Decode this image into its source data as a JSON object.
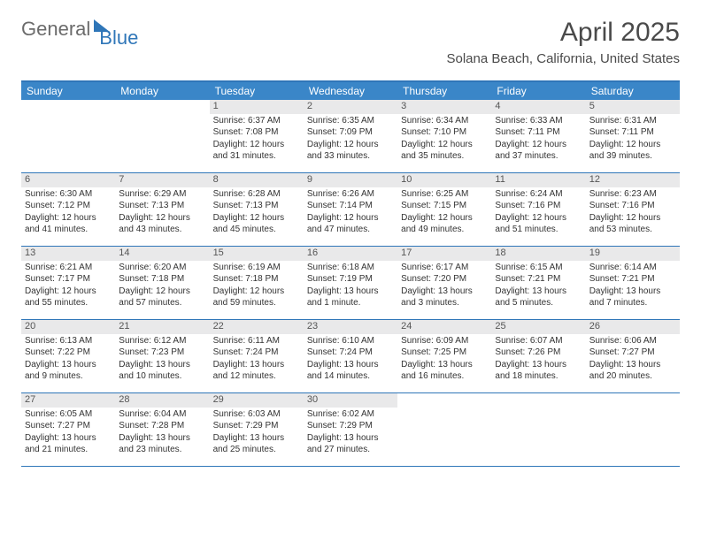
{
  "logo": {
    "word1": "General",
    "word2": "Blue"
  },
  "title": "April 2025",
  "location": "Solana Beach, California, United States",
  "colors": {
    "header_bg": "#3a86c8",
    "border": "#2f76b8",
    "daybar_bg": "#e9e9ea",
    "logo_gray": "#6b6b6b",
    "logo_blue": "#2f76b8",
    "text": "#333333"
  },
  "day_labels": [
    "Sunday",
    "Monday",
    "Tuesday",
    "Wednesday",
    "Thursday",
    "Friday",
    "Saturday"
  ],
  "weeks": [
    [
      {
        "empty": true
      },
      {
        "empty": true
      },
      {
        "n": "1",
        "sunrise": "Sunrise: 6:37 AM",
        "sunset": "Sunset: 7:08 PM",
        "day1": "Daylight: 12 hours",
        "day2": "and 31 minutes."
      },
      {
        "n": "2",
        "sunrise": "Sunrise: 6:35 AM",
        "sunset": "Sunset: 7:09 PM",
        "day1": "Daylight: 12 hours",
        "day2": "and 33 minutes."
      },
      {
        "n": "3",
        "sunrise": "Sunrise: 6:34 AM",
        "sunset": "Sunset: 7:10 PM",
        "day1": "Daylight: 12 hours",
        "day2": "and 35 minutes."
      },
      {
        "n": "4",
        "sunrise": "Sunrise: 6:33 AM",
        "sunset": "Sunset: 7:11 PM",
        "day1": "Daylight: 12 hours",
        "day2": "and 37 minutes."
      },
      {
        "n": "5",
        "sunrise": "Sunrise: 6:31 AM",
        "sunset": "Sunset: 7:11 PM",
        "day1": "Daylight: 12 hours",
        "day2": "and 39 minutes."
      }
    ],
    [
      {
        "n": "6",
        "sunrise": "Sunrise: 6:30 AM",
        "sunset": "Sunset: 7:12 PM",
        "day1": "Daylight: 12 hours",
        "day2": "and 41 minutes."
      },
      {
        "n": "7",
        "sunrise": "Sunrise: 6:29 AM",
        "sunset": "Sunset: 7:13 PM",
        "day1": "Daylight: 12 hours",
        "day2": "and 43 minutes."
      },
      {
        "n": "8",
        "sunrise": "Sunrise: 6:28 AM",
        "sunset": "Sunset: 7:13 PM",
        "day1": "Daylight: 12 hours",
        "day2": "and 45 minutes."
      },
      {
        "n": "9",
        "sunrise": "Sunrise: 6:26 AM",
        "sunset": "Sunset: 7:14 PM",
        "day1": "Daylight: 12 hours",
        "day2": "and 47 minutes."
      },
      {
        "n": "10",
        "sunrise": "Sunrise: 6:25 AM",
        "sunset": "Sunset: 7:15 PM",
        "day1": "Daylight: 12 hours",
        "day2": "and 49 minutes."
      },
      {
        "n": "11",
        "sunrise": "Sunrise: 6:24 AM",
        "sunset": "Sunset: 7:16 PM",
        "day1": "Daylight: 12 hours",
        "day2": "and 51 minutes."
      },
      {
        "n": "12",
        "sunrise": "Sunrise: 6:23 AM",
        "sunset": "Sunset: 7:16 PM",
        "day1": "Daylight: 12 hours",
        "day2": "and 53 minutes."
      }
    ],
    [
      {
        "n": "13",
        "sunrise": "Sunrise: 6:21 AM",
        "sunset": "Sunset: 7:17 PM",
        "day1": "Daylight: 12 hours",
        "day2": "and 55 minutes."
      },
      {
        "n": "14",
        "sunrise": "Sunrise: 6:20 AM",
        "sunset": "Sunset: 7:18 PM",
        "day1": "Daylight: 12 hours",
        "day2": "and 57 minutes."
      },
      {
        "n": "15",
        "sunrise": "Sunrise: 6:19 AM",
        "sunset": "Sunset: 7:18 PM",
        "day1": "Daylight: 12 hours",
        "day2": "and 59 minutes."
      },
      {
        "n": "16",
        "sunrise": "Sunrise: 6:18 AM",
        "sunset": "Sunset: 7:19 PM",
        "day1": "Daylight: 13 hours",
        "day2": "and 1 minute."
      },
      {
        "n": "17",
        "sunrise": "Sunrise: 6:17 AM",
        "sunset": "Sunset: 7:20 PM",
        "day1": "Daylight: 13 hours",
        "day2": "and 3 minutes."
      },
      {
        "n": "18",
        "sunrise": "Sunrise: 6:15 AM",
        "sunset": "Sunset: 7:21 PM",
        "day1": "Daylight: 13 hours",
        "day2": "and 5 minutes."
      },
      {
        "n": "19",
        "sunrise": "Sunrise: 6:14 AM",
        "sunset": "Sunset: 7:21 PM",
        "day1": "Daylight: 13 hours",
        "day2": "and 7 minutes."
      }
    ],
    [
      {
        "n": "20",
        "sunrise": "Sunrise: 6:13 AM",
        "sunset": "Sunset: 7:22 PM",
        "day1": "Daylight: 13 hours",
        "day2": "and 9 minutes."
      },
      {
        "n": "21",
        "sunrise": "Sunrise: 6:12 AM",
        "sunset": "Sunset: 7:23 PM",
        "day1": "Daylight: 13 hours",
        "day2": "and 10 minutes."
      },
      {
        "n": "22",
        "sunrise": "Sunrise: 6:11 AM",
        "sunset": "Sunset: 7:24 PM",
        "day1": "Daylight: 13 hours",
        "day2": "and 12 minutes."
      },
      {
        "n": "23",
        "sunrise": "Sunrise: 6:10 AM",
        "sunset": "Sunset: 7:24 PM",
        "day1": "Daylight: 13 hours",
        "day2": "and 14 minutes."
      },
      {
        "n": "24",
        "sunrise": "Sunrise: 6:09 AM",
        "sunset": "Sunset: 7:25 PM",
        "day1": "Daylight: 13 hours",
        "day2": "and 16 minutes."
      },
      {
        "n": "25",
        "sunrise": "Sunrise: 6:07 AM",
        "sunset": "Sunset: 7:26 PM",
        "day1": "Daylight: 13 hours",
        "day2": "and 18 minutes."
      },
      {
        "n": "26",
        "sunrise": "Sunrise: 6:06 AM",
        "sunset": "Sunset: 7:27 PM",
        "day1": "Daylight: 13 hours",
        "day2": "and 20 minutes."
      }
    ],
    [
      {
        "n": "27",
        "sunrise": "Sunrise: 6:05 AM",
        "sunset": "Sunset: 7:27 PM",
        "day1": "Daylight: 13 hours",
        "day2": "and 21 minutes."
      },
      {
        "n": "28",
        "sunrise": "Sunrise: 6:04 AM",
        "sunset": "Sunset: 7:28 PM",
        "day1": "Daylight: 13 hours",
        "day2": "and 23 minutes."
      },
      {
        "n": "29",
        "sunrise": "Sunrise: 6:03 AM",
        "sunset": "Sunset: 7:29 PM",
        "day1": "Daylight: 13 hours",
        "day2": "and 25 minutes."
      },
      {
        "n": "30",
        "sunrise": "Sunrise: 6:02 AM",
        "sunset": "Sunset: 7:29 PM",
        "day1": "Daylight: 13 hours",
        "day2": "and 27 minutes."
      },
      {
        "empty": true
      },
      {
        "empty": true
      },
      {
        "empty": true
      }
    ]
  ]
}
